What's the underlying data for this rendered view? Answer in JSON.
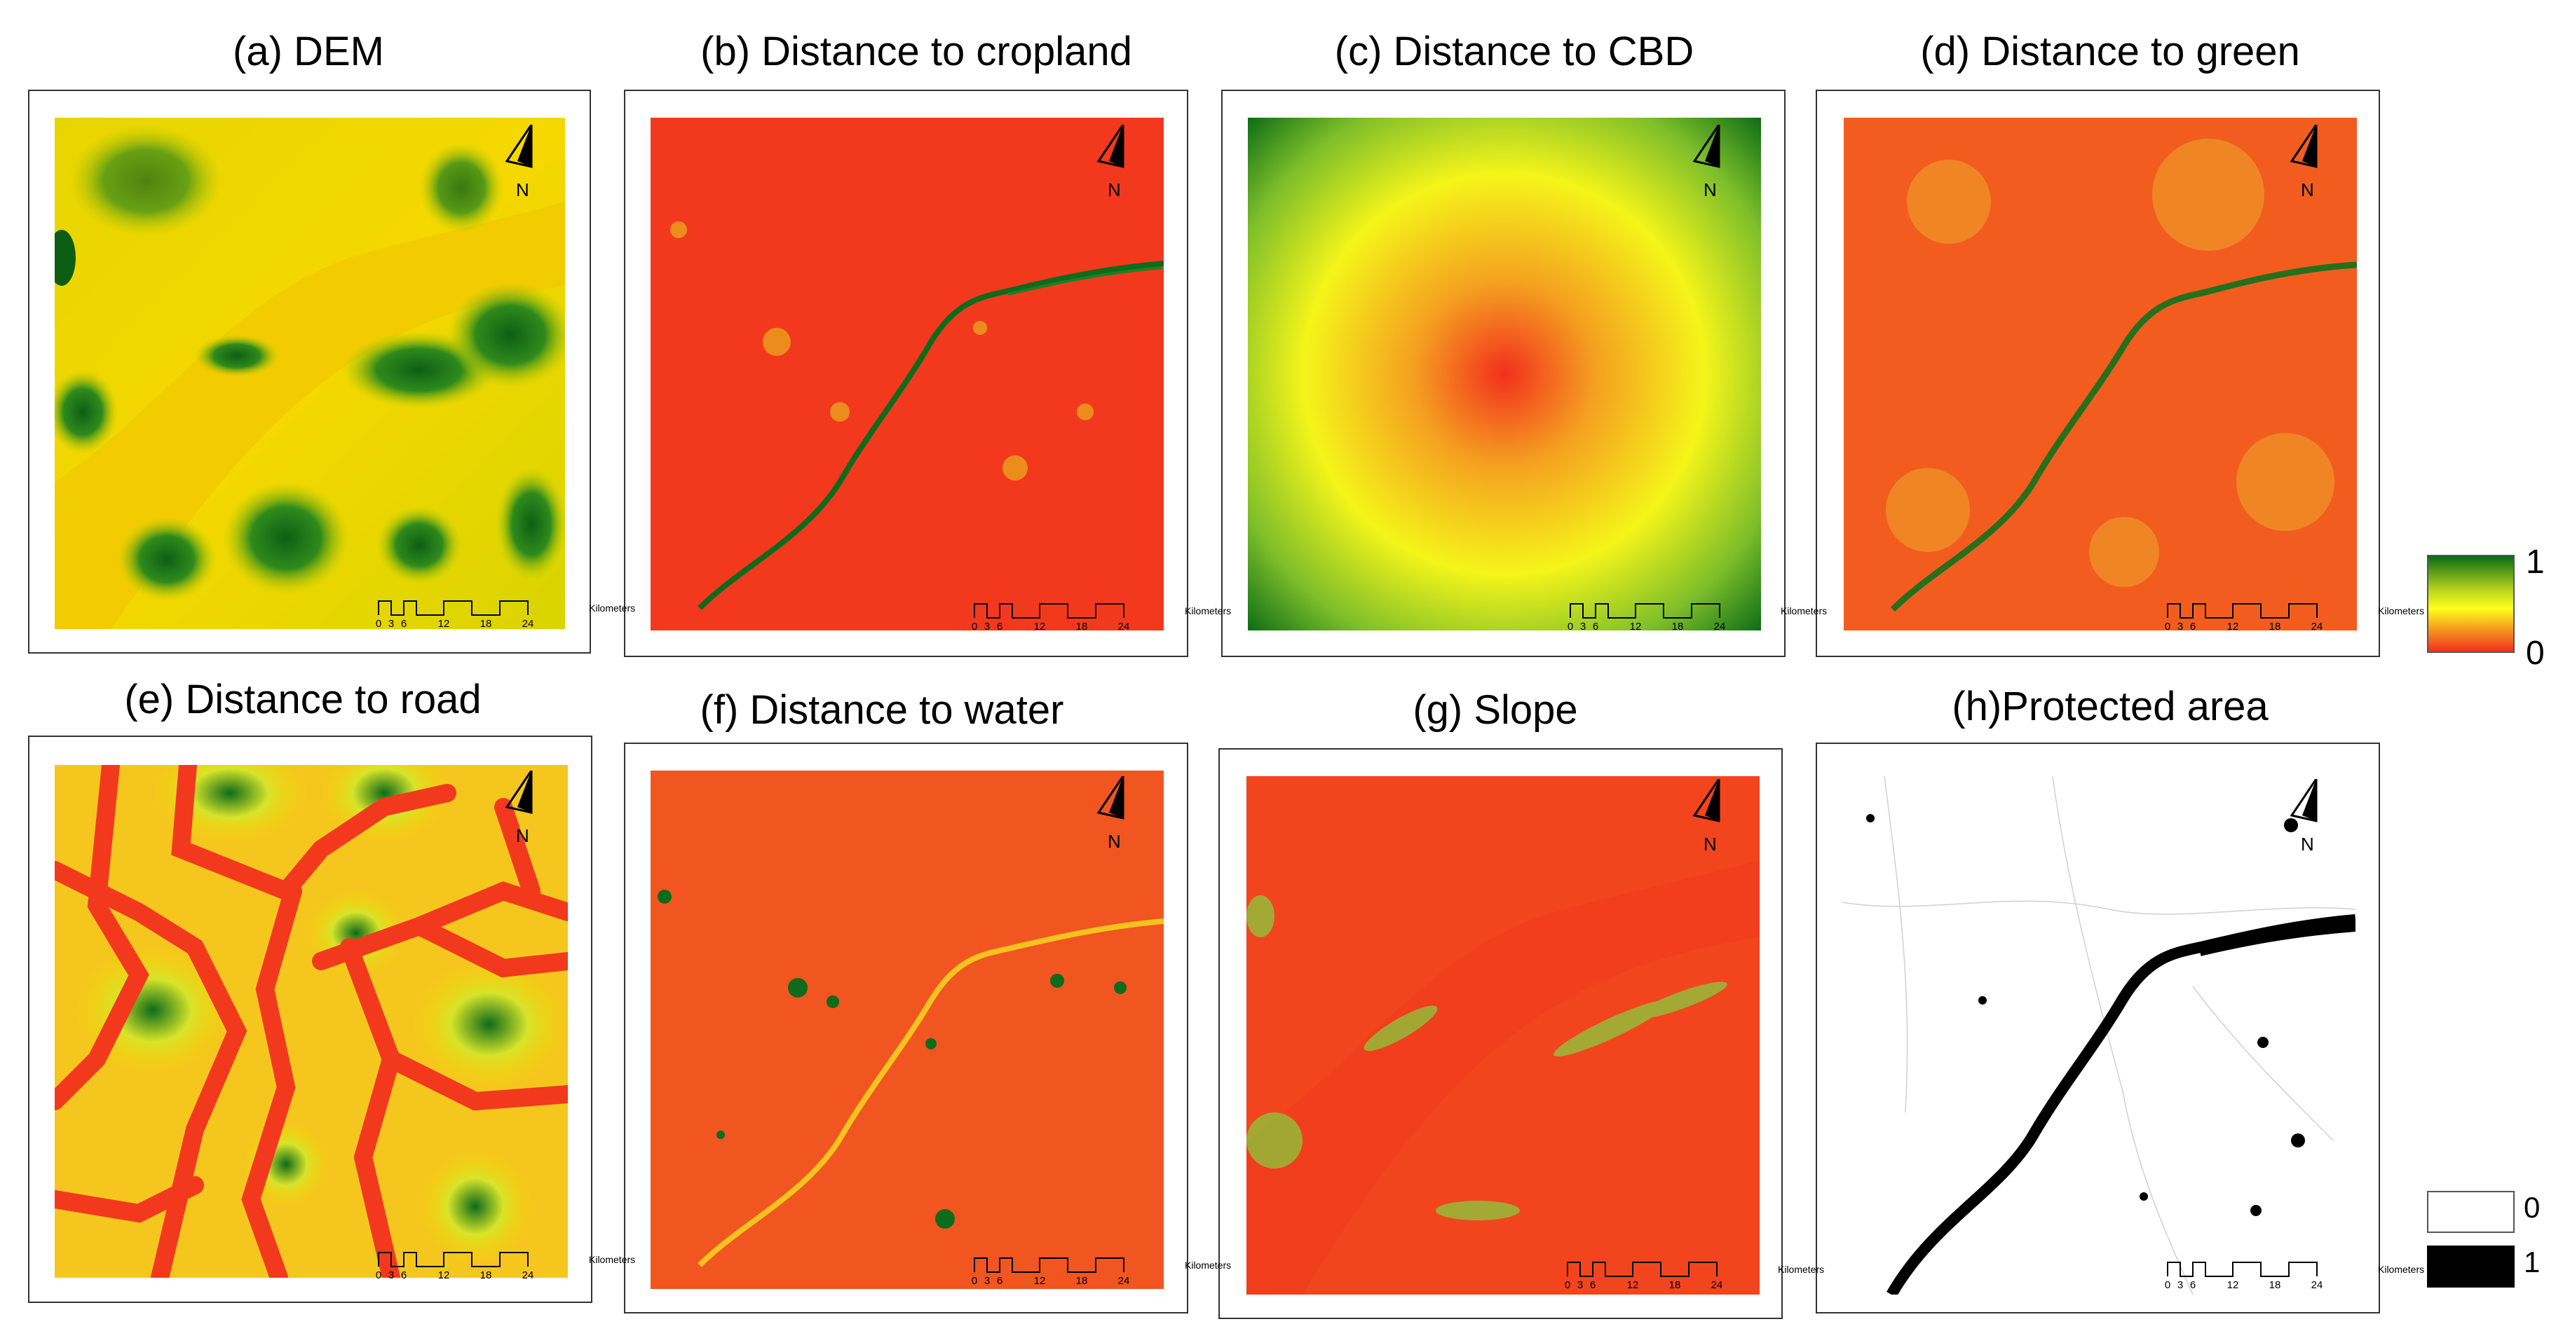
{
  "panels": [
    {
      "id": "a",
      "title": "(a) DEM"
    },
    {
      "id": "b",
      "title": "(b) Distance to cropland"
    },
    {
      "id": "c",
      "title": "(c) Distance to CBD"
    },
    {
      "id": "d",
      "title": "(d) Distance to green"
    },
    {
      "id": "e",
      "title": "(e) Distance to road"
    },
    {
      "id": "f",
      "title": "(f) Distance to water"
    },
    {
      "id": "g",
      "title": "(g) Slope"
    },
    {
      "id": "h",
      "title": "(h)Protected area"
    }
  ],
  "map_common": {
    "north_label": "N",
    "scale_ticks": [
      "0",
      "3",
      "6",
      "12",
      "18",
      "24"
    ],
    "scale_unit": "Kilometers"
  },
  "legend_continuous": {
    "max_label": "1",
    "min_label": "0",
    "colors": [
      "#006400",
      "#ffff00",
      "#ff0000"
    ]
  },
  "legend_binary": {
    "items": [
      {
        "label": "0",
        "color": "#ffffff"
      },
      {
        "label": "1",
        "color": "#000000"
      }
    ]
  },
  "colors": {
    "red": "#f2391e",
    "orange": "#f47a26",
    "yellow": "#f5d400",
    "green": "#0d6b1b",
    "river": "#0d6b1b"
  }
}
